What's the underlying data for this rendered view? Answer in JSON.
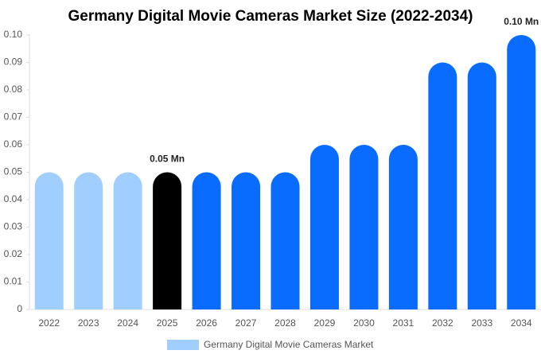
{
  "chart_data": {
    "type": "bar",
    "title": "Germany Digital Movie Cameras Market Size (2022-2034)",
    "categories": [
      "2022",
      "2023",
      "2024",
      "2025",
      "2026",
      "2027",
      "2028",
      "2029",
      "2030",
      "2031",
      "2032",
      "2033",
      "2034"
    ],
    "series": [
      {
        "name": "Germany Digital Movie Cameras Market",
        "color": "#a0cfff",
        "values": [
          0.05,
          0.05,
          0.05,
          0.05,
          0.05,
          0.05,
          0.05,
          0.06,
          0.06,
          0.06,
          0.09,
          0.09,
          0.1
        ],
        "colors": [
          "#a0cfff",
          "#a0cfff",
          "#a0cfff",
          "#000000",
          "#0a6cff",
          "#0a6cff",
          "#0a6cff",
          "#0a6cff",
          "#0a6cff",
          "#0a6cff",
          "#0a6cff",
          "#0a6cff",
          "#0a6cff"
        ],
        "value_labels": [
          null,
          null,
          null,
          "0.05 Mn",
          null,
          null,
          null,
          null,
          null,
          null,
          null,
          null,
          "0.10 Mn"
        ]
      }
    ],
    "ylim": [
      0,
      0.1
    ],
    "yticks": [
      0,
      0.01,
      0.02,
      0.03,
      0.04,
      0.05,
      0.06,
      0.07,
      0.08,
      0.09,
      {
        "value": 0.1,
        "label": "0.10"
      }
    ],
    "grid": false,
    "legend": "bottom"
  }
}
